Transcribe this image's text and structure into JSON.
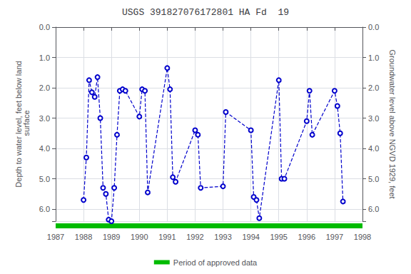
{
  "chart_data": {
    "type": "line",
    "title": "USGS 391827076172801 HA Fd  19",
    "ylabel": "Depth to water level, feet below land\n surface",
    "y2label": "Groundwater level above NGVD 1929, feet",
    "xlim": [
      1987,
      1998
    ],
    "xticks": [
      1987,
      1988,
      1989,
      1990,
      1991,
      1992,
      1993,
      1994,
      1995,
      1996,
      1997,
      1998
    ],
    "ylim": [
      0.0,
      6.4
    ],
    "yticks": [
      {
        "value": 0,
        "label": "0.0"
      },
      {
        "value": 1,
        "label": "1.0"
      },
      {
        "value": 2,
        "label": "2.0"
      },
      {
        "value": 3,
        "label": "3.0"
      },
      {
        "value": 4,
        "label": "4.0"
      },
      {
        "value": 5,
        "label": "5.0"
      },
      {
        "value": 6,
        "label": "6.0"
      }
    ],
    "y2lim": [
      0.0,
      6.4
    ],
    "y2ticks": [
      {
        "value": 0,
        "label": "0.0"
      },
      {
        "value": 1,
        "label": "1.0"
      },
      {
        "value": 2,
        "label": "2.0"
      },
      {
        "value": 3,
        "label": "3.0"
      },
      {
        "value": 4,
        "label": "4.0"
      },
      {
        "value": 5,
        "label": "5.0"
      },
      {
        "value": 6,
        "label": "6.0"
      }
    ],
    "grid": true,
    "legend": "bottom",
    "series": [
      {
        "type": "line",
        "color": "#0000cc",
        "line_style": "dashed",
        "marker": "circle",
        "x": [
          1988.0,
          1988.1,
          1988.2,
          1988.3,
          1988.4,
          1988.5,
          1988.6,
          1988.7,
          1988.8,
          1988.9,
          1989.0,
          1989.1,
          1989.2,
          1989.3,
          1989.4,
          1989.5,
          1990.0,
          1990.1,
          1990.2,
          1990.3,
          1991.0,
          1991.1,
          1991.2,
          1991.3,
          1992.0,
          1992.1,
          1992.2,
          1993.0,
          1993.1,
          1994.0,
          1994.1,
          1994.2,
          1994.3,
          1995.0,
          1995.1,
          1995.2,
          1996.0,
          1996.1,
          1996.2,
          1997.0,
          1997.1,
          1997.2,
          1997.3
        ],
        "values": [
          5.7,
          4.3,
          1.75,
          2.15,
          2.3,
          1.65,
          3.0,
          5.3,
          5.5,
          6.35,
          6.4,
          5.3,
          3.55,
          2.1,
          2.05,
          2.1,
          2.95,
          2.05,
          2.1,
          5.45,
          1.35,
          2.05,
          4.95,
          5.1,
          3.4,
          3.55,
          5.3,
          5.25,
          2.8,
          3.4,
          5.6,
          5.7,
          6.3,
          1.75,
          5.0,
          5.0,
          3.1,
          2.1,
          3.55,
          2.1,
          2.6,
          3.5,
          5.75
        ]
      },
      {
        "type": "band",
        "name": "Period of approved data",
        "color": "#00bb00",
        "x": [
          1987,
          1998
        ]
      }
    ]
  }
}
